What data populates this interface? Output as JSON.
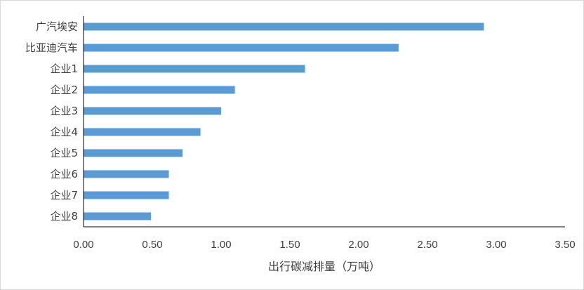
{
  "chart_data": {
    "type": "bar",
    "orientation": "horizontal",
    "categories": [
      "广汽埃安",
      "比亚迪汽车",
      "企业1",
      "企业2",
      "企业3",
      "企业4",
      "企业5",
      "企业6",
      "企业7",
      "企业8"
    ],
    "values": [
      2.91,
      2.29,
      1.61,
      1.1,
      1.0,
      0.85,
      0.72,
      0.62,
      0.62,
      0.49
    ],
    "title": "",
    "xlabel": "出行碳减排量（万吨）",
    "ylabel": "",
    "xlim": [
      0,
      3.5
    ],
    "xticks": [
      "0.00",
      "0.50",
      "1.00",
      "1.50",
      "2.00",
      "2.50",
      "3.00",
      "3.50"
    ],
    "grid": false,
    "legend": "none",
    "bar_color": "#5b9bd5",
    "axis_color": "#000000",
    "text_color": "#404040"
  }
}
